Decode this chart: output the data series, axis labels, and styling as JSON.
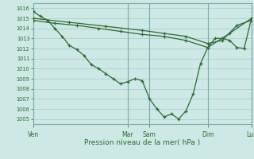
{
  "bg_color": "#cde8e5",
  "grid_color": "#a8ccca",
  "line_color": "#2d6b30",
  "vline_color": "#7aaaaa",
  "xlabel": "Pression niveau de la mer( hPa )",
  "ylim_min": 1004.5,
  "ylim_max": 1016.5,
  "yticks": [
    1005,
    1006,
    1007,
    1008,
    1009,
    1010,
    1011,
    1012,
    1013,
    1014,
    1015,
    1016
  ],
  "day_labels": [
    "Ven",
    "Mar",
    "Sam",
    "Dim",
    "Lun"
  ],
  "day_x": [
    0,
    13,
    16,
    24,
    30
  ],
  "xlim_min": 0,
  "xlim_max": 30,
  "line1_x": [
    0,
    1,
    2,
    3,
    4,
    5,
    6,
    7,
    8,
    9,
    10,
    11,
    12,
    13,
    14,
    15,
    16,
    17,
    18,
    19,
    20,
    21,
    22,
    23,
    24,
    25,
    26,
    27,
    28,
    29,
    30
  ],
  "line1_y": [
    1015.7,
    1015.2,
    1014.8,
    1014.0,
    1013.2,
    1012.3,
    1011.9,
    1011.3,
    1010.4,
    1010.0,
    1009.5,
    1009.0,
    1008.5,
    1008.7,
    1009.0,
    1008.8,
    1007.0,
    1006.0,
    1005.2,
    1005.5,
    1005.0,
    1005.8,
    1007.5,
    1010.5,
    1012.1,
    1013.0,
    1013.0,
    1012.8,
    1012.1,
    1012.0,
    1015.0
  ],
  "line2_x": [
    0,
    3,
    6,
    9,
    12,
    15,
    18,
    21,
    24,
    27,
    30
  ],
  "line2_y": [
    1014.8,
    1014.5,
    1014.3,
    1014.0,
    1013.7,
    1013.4,
    1013.2,
    1012.8,
    1012.1,
    1013.5,
    1015.0
  ],
  "line3_x": [
    0,
    5,
    10,
    15,
    18,
    21,
    24,
    26,
    28,
    30
  ],
  "line3_y": [
    1015.0,
    1014.6,
    1014.2,
    1013.8,
    1013.5,
    1013.2,
    1012.5,
    1012.8,
    1014.3,
    1014.8
  ]
}
